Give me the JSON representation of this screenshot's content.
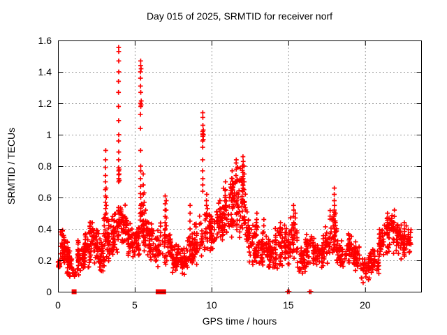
{
  "window": {
    "background": "#ffffff"
  },
  "chart_data": {
    "type": "scatter",
    "title": "Day 015 of 2025, SRMTID for receiver norf",
    "xlabel": "GPS time / hours",
    "ylabel": "SRMTID / TECUs",
    "xlim": [
      0,
      23.65
    ],
    "ylim": [
      0,
      1.6
    ],
    "xticks": [
      0,
      5,
      10,
      15,
      20
    ],
    "xticklabels": [
      "0",
      "5",
      "10",
      "15",
      "20"
    ],
    "yticks": [
      0,
      0.2,
      0.4,
      0.6,
      0.8,
      1.0,
      1.2,
      1.4,
      1.6
    ],
    "yticklabels": [
      "0",
      "0.2",
      "0.4",
      "0.6",
      "0.8",
      "1",
      "1.2",
      "1.4",
      "1.6"
    ],
    "grid": true,
    "grid_color": "#999999",
    "axis_color": "#000000",
    "marker": "plus",
    "marker_color": "#ff0000",
    "series": [
      {
        "name": "srmtid",
        "marker": "plus",
        "color": "#ff0000",
        "bands_format": [
          "x_start_h",
          "x_end_h",
          "y_min_TECU",
          "y_max_TECU",
          "n_points"
        ],
        "bands": [
          [
            0.0,
            0.15,
            0.13,
            0.22,
            14
          ],
          [
            0.15,
            0.45,
            0.12,
            0.43,
            40
          ],
          [
            0.45,
            0.7,
            0.1,
            0.35,
            30
          ],
          [
            0.7,
            0.95,
            0.08,
            0.28,
            28
          ],
          [
            0.95,
            1.15,
            0.07,
            0.18,
            10
          ],
          [
            1.15,
            1.45,
            0.1,
            0.33,
            28
          ],
          [
            1.45,
            1.75,
            0.1,
            0.32,
            28
          ],
          [
            1.75,
            2.05,
            0.13,
            0.4,
            30
          ],
          [
            2.05,
            2.35,
            0.15,
            0.5,
            34
          ],
          [
            2.35,
            2.65,
            0.14,
            0.42,
            30
          ],
          [
            2.65,
            2.95,
            0.12,
            0.36,
            30
          ],
          [
            2.95,
            3.25,
            0.15,
            0.55,
            30
          ],
          [
            3.25,
            3.6,
            0.17,
            0.5,
            30
          ],
          [
            3.6,
            3.9,
            0.22,
            0.55,
            28
          ],
          [
            3.9,
            4.15,
            0.3,
            0.6,
            24
          ],
          [
            4.15,
            4.5,
            0.28,
            0.58,
            38
          ],
          [
            4.5,
            4.9,
            0.2,
            0.47,
            36
          ],
          [
            4.9,
            5.3,
            0.2,
            0.45,
            34
          ],
          [
            5.3,
            5.55,
            0.33,
            0.58,
            18
          ],
          [
            5.55,
            5.9,
            0.22,
            0.5,
            28
          ],
          [
            5.9,
            6.3,
            0.15,
            0.45,
            30
          ],
          [
            6.3,
            6.55,
            0.15,
            0.42,
            22
          ],
          [
            6.55,
            6.95,
            0.18,
            0.45,
            14
          ],
          [
            6.95,
            7.35,
            0.15,
            0.45,
            30
          ],
          [
            7.35,
            7.9,
            0.1,
            0.32,
            44
          ],
          [
            7.9,
            8.4,
            0.1,
            0.3,
            40
          ],
          [
            8.4,
            8.8,
            0.12,
            0.42,
            32
          ],
          [
            8.8,
            9.2,
            0.13,
            0.45,
            30
          ],
          [
            9.2,
            9.42,
            0.2,
            0.5,
            16
          ],
          [
            9.5,
            9.9,
            0.25,
            0.55,
            26
          ],
          [
            9.9,
            10.3,
            0.22,
            0.5,
            30
          ],
          [
            10.3,
            10.7,
            0.28,
            0.6,
            34
          ],
          [
            10.7,
            11.1,
            0.3,
            0.7,
            36
          ],
          [
            11.1,
            11.5,
            0.32,
            0.78,
            40
          ],
          [
            11.5,
            11.85,
            0.33,
            0.82,
            36
          ],
          [
            11.85,
            12.2,
            0.3,
            0.84,
            38
          ],
          [
            12.2,
            12.5,
            0.18,
            0.55,
            30
          ],
          [
            12.5,
            12.9,
            0.15,
            0.45,
            30
          ],
          [
            12.9,
            13.15,
            0.16,
            0.48,
            20
          ],
          [
            13.15,
            13.6,
            0.14,
            0.4,
            34
          ],
          [
            13.6,
            14.1,
            0.12,
            0.35,
            40
          ],
          [
            14.1,
            14.6,
            0.13,
            0.45,
            38
          ],
          [
            14.6,
            15.1,
            0.12,
            0.45,
            36
          ],
          [
            15.1,
            15.6,
            0.16,
            0.52,
            34
          ],
          [
            15.6,
            16.1,
            0.08,
            0.3,
            36
          ],
          [
            16.1,
            16.6,
            0.12,
            0.45,
            32
          ],
          [
            16.6,
            17.2,
            0.13,
            0.35,
            42
          ],
          [
            17.2,
            17.7,
            0.15,
            0.45,
            36
          ],
          [
            17.7,
            18.15,
            0.2,
            0.55,
            34
          ],
          [
            18.15,
            18.7,
            0.14,
            0.35,
            38
          ],
          [
            18.7,
            19.2,
            0.15,
            0.37,
            36
          ],
          [
            19.2,
            19.7,
            0.12,
            0.32,
            36
          ],
          [
            19.7,
            20.3,
            0.05,
            0.26,
            40
          ],
          [
            20.3,
            20.9,
            0.1,
            0.3,
            38
          ],
          [
            20.9,
            21.3,
            0.18,
            0.48,
            30
          ],
          [
            21.3,
            21.8,
            0.24,
            0.52,
            36
          ],
          [
            21.8,
            22.3,
            0.22,
            0.48,
            36
          ],
          [
            22.3,
            22.7,
            0.2,
            0.45,
            30
          ],
          [
            22.7,
            23.0,
            0.24,
            0.42,
            22
          ]
        ],
        "spike_columns_format": [
          "x_h",
          [
            "y_values_TECU"
          ]
        ],
        "spike_columns": [
          [
            3.1,
            [
              0.53,
              0.57,
              0.61,
              0.65,
              0.7,
              0.74,
              0.79,
              0.84,
              0.9
            ]
          ],
          [
            3.14,
            [
              0.5,
              0.55,
              0.6,
              0.66
            ]
          ],
          [
            3.95,
            [
              0.7,
              0.72,
              0.745,
              0.77,
              0.79,
              0.84,
              0.89,
              0.96,
              1.0,
              1.09,
              1.18,
              1.27,
              1.34,
              1.4,
              1.47,
              1.53,
              1.556
            ]
          ],
          [
            3.99,
            [
              0.71,
              0.75,
              0.78
            ]
          ],
          [
            5.38,
            [
              0.55,
              0.6,
              0.625,
              0.67,
              0.72,
              0.77,
              0.8,
              0.9,
              1.04,
              1.13,
              1.18,
              1.2,
              1.27,
              1.31,
              1.36,
              1.4,
              1.44,
              1.47
            ]
          ],
          [
            5.42,
            [
              1.19,
              1.215,
              1.42
            ]
          ],
          [
            5.55,
            [
              0.55,
              0.62,
              0.68,
              0.75
            ]
          ],
          [
            5.62,
            [
              0.5,
              0.57,
              0.63
            ]
          ],
          [
            5.7,
            [
              0.45,
              0.52
            ]
          ],
          [
            6.98,
            [
              0.4,
              0.44,
              0.48,
              0.52,
              0.56,
              0.61
            ]
          ],
          [
            7.05,
            [
              0.35,
              0.42,
              0.47,
              0.52,
              0.58
            ]
          ],
          [
            8.6,
            [
              0.35,
              0.4,
              0.45,
              0.5,
              0.55
            ]
          ],
          [
            9.43,
            [
              0.64,
              0.68,
              0.72,
              0.77,
              0.84,
              0.92,
              0.96,
              0.99,
              1.0,
              1.005,
              1.02,
              1.06,
              1.11,
              1.14
            ]
          ],
          [
            9.47,
            [
              0.97,
              1.0,
              1.03
            ]
          ],
          [
            9.68,
            [
              0.5,
              0.55,
              0.58,
              0.62
            ]
          ],
          [
            10.55,
            [
              0.48,
              0.53,
              0.58
            ]
          ],
          [
            10.9,
            [
              0.55,
              0.6,
              0.65,
              0.7
            ]
          ],
          [
            11.35,
            [
              0.6,
              0.66,
              0.72,
              0.77
            ]
          ],
          [
            11.6,
            [
              0.7,
              0.74,
              0.78,
              0.82,
              0.84
            ]
          ],
          [
            12.05,
            [
              0.68,
              0.72,
              0.76,
              0.8,
              0.83,
              0.86
            ]
          ],
          [
            12.12,
            [
              0.65,
              0.7,
              0.75,
              0.8
            ]
          ],
          [
            12.95,
            [
              0.42,
              0.46,
              0.5
            ]
          ],
          [
            13.4,
            [
              0.38,
              0.42,
              0.46
            ]
          ],
          [
            14.5,
            [
              0.36,
              0.4,
              0.44
            ]
          ],
          [
            15.35,
            [
              0.4,
              0.44,
              0.48,
              0.52,
              0.55
            ]
          ],
          [
            15.45,
            [
              0.38,
              0.43,
              0.47,
              0.5
            ]
          ],
          [
            18.0,
            [
              0.3,
              0.35,
              0.4,
              0.45,
              0.49,
              0.52,
              0.55,
              0.58,
              0.62,
              0.66
            ]
          ],
          [
            18.06,
            [
              0.28,
              0.33,
              0.38,
              0.44,
              0.5
            ]
          ],
          [
            18.95,
            [
              0.3,
              0.33,
              0.36
            ]
          ],
          [
            21.45,
            [
              0.4,
              0.44,
              0.47,
              0.5
            ]
          ],
          [
            21.9,
            [
              0.4,
              0.44,
              0.48,
              0.52
            ]
          ],
          [
            22.55,
            [
              0.36,
              0.4,
              0.44
            ]
          ]
        ],
        "zero_level_points_x": [
          14.95,
          15.05,
          16.38,
          16.47
        ]
      },
      {
        "name": "flag-squares",
        "marker": "filled-square",
        "color": "#ff0000",
        "points": [
          [
            1.05,
            0
          ],
          [
            6.52,
            0
          ],
          [
            6.58,
            0
          ],
          [
            6.64,
            0
          ],
          [
            6.7,
            0
          ],
          [
            6.76,
            0
          ],
          [
            6.82,
            0
          ],
          [
            6.88,
            0
          ]
        ]
      }
    ]
  }
}
